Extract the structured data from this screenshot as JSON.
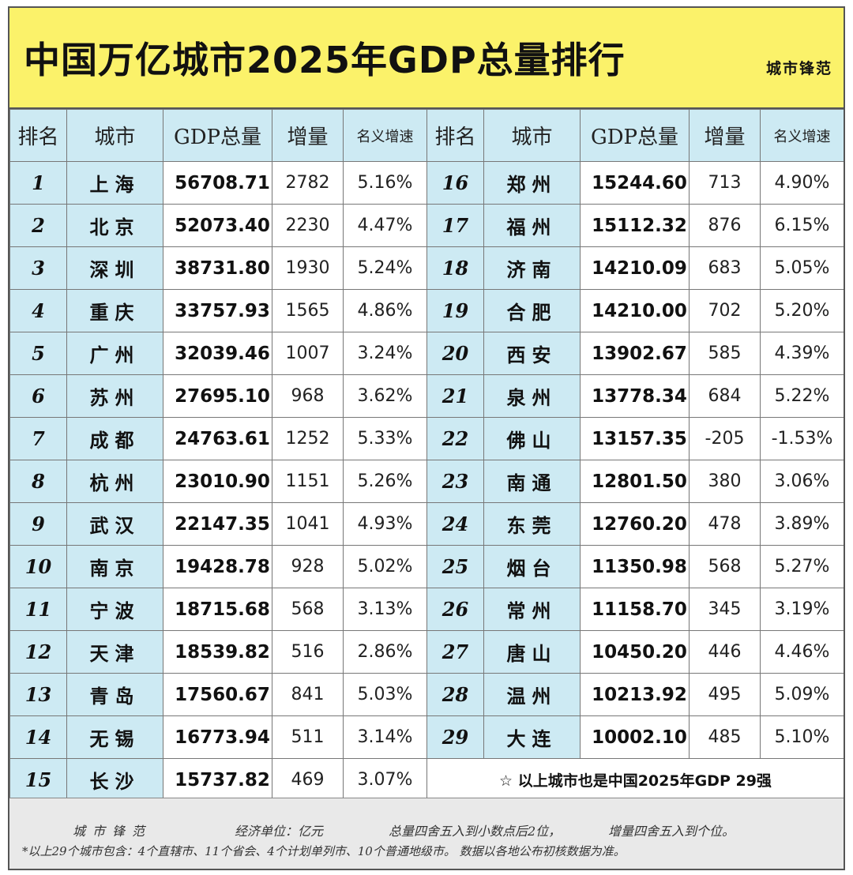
{
  "header": {
    "title": "中国万亿城市2025年GDP总量排行",
    "brand": "城市锋范"
  },
  "table": {
    "headers": [
      "排名",
      "城市",
      "GDP总量",
      "增量",
      "名义增速"
    ],
    "rows": [
      {
        "rank": "1",
        "city": "上海",
        "gdp": "56708.71",
        "increase": "2782",
        "rate": "5.16%"
      },
      {
        "rank": "2",
        "city": "北京",
        "gdp": "52073.40",
        "increase": "2230",
        "rate": "4.47%"
      },
      {
        "rank": "3",
        "city": "深圳",
        "gdp": "38731.80",
        "increase": "1930",
        "rate": "5.24%"
      },
      {
        "rank": "4",
        "city": "重庆",
        "gdp": "33757.93",
        "increase": "1565",
        "rate": "4.86%"
      },
      {
        "rank": "5",
        "city": "广州",
        "gdp": "32039.46",
        "increase": "1007",
        "rate": "3.24%"
      },
      {
        "rank": "6",
        "city": "苏州",
        "gdp": "27695.10",
        "increase": "968",
        "rate": "3.62%"
      },
      {
        "rank": "7",
        "city": "成都",
        "gdp": "24763.61",
        "increase": "1252",
        "rate": "5.33%"
      },
      {
        "rank": "8",
        "city": "杭州",
        "gdp": "23010.90",
        "increase": "1151",
        "rate": "5.26%"
      },
      {
        "rank": "9",
        "city": "武汉",
        "gdp": "22147.35",
        "increase": "1041",
        "rate": "4.93%"
      },
      {
        "rank": "10",
        "city": "南京",
        "gdp": "19428.78",
        "increase": "928",
        "rate": "5.02%"
      },
      {
        "rank": "11",
        "city": "宁波",
        "gdp": "18715.68",
        "increase": "568",
        "rate": "3.13%"
      },
      {
        "rank": "12",
        "city": "天津",
        "gdp": "18539.82",
        "increase": "516",
        "rate": "2.86%"
      },
      {
        "rank": "13",
        "city": "青岛",
        "gdp": "17560.67",
        "increase": "841",
        "rate": "5.03%"
      },
      {
        "rank": "14",
        "city": "无锡",
        "gdp": "16773.94",
        "increase": "511",
        "rate": "3.14%"
      },
      {
        "rank": "15",
        "city": "长沙",
        "gdp": "15737.82",
        "increase": "469",
        "rate": "3.07%"
      },
      {
        "rank": "16",
        "city": "郑州",
        "gdp": "15244.60",
        "increase": "713",
        "rate": "4.90%"
      },
      {
        "rank": "17",
        "city": "福州",
        "gdp": "15112.32",
        "increase": "876",
        "rate": "6.15%"
      },
      {
        "rank": "18",
        "city": "济南",
        "gdp": "14210.09",
        "increase": "683",
        "rate": "5.05%"
      },
      {
        "rank": "19",
        "city": "合肥",
        "gdp": "14210.00",
        "increase": "702",
        "rate": "5.20%"
      },
      {
        "rank": "20",
        "city": "西安",
        "gdp": "13902.67",
        "increase": "585",
        "rate": "4.39%"
      },
      {
        "rank": "21",
        "city": "泉州",
        "gdp": "13778.34",
        "increase": "684",
        "rate": "5.22%"
      },
      {
        "rank": "22",
        "city": "佛山",
        "gdp": "13157.35",
        "increase": "-205",
        "rate": "-1.53%"
      },
      {
        "rank": "23",
        "city": "南通",
        "gdp": "12801.50",
        "increase": "380",
        "rate": "3.06%"
      },
      {
        "rank": "24",
        "city": "东莞",
        "gdp": "12760.20",
        "increase": "478",
        "rate": "3.89%"
      },
      {
        "rank": "25",
        "city": "烟台",
        "gdp": "11350.98",
        "increase": "568",
        "rate": "5.27%"
      },
      {
        "rank": "26",
        "city": "常州",
        "gdp": "11158.70",
        "increase": "345",
        "rate": "3.19%"
      },
      {
        "rank": "27",
        "city": "唐山",
        "gdp": "10450.20",
        "increase": "446",
        "rate": "4.46%"
      },
      {
        "rank": "28",
        "city": "温州",
        "gdp": "10213.92",
        "increase": "495",
        "rate": "5.09%"
      },
      {
        "rank": "29",
        "city": "大连",
        "gdp": "10002.10",
        "increase": "485",
        "rate": "5.10%"
      }
    ],
    "note": "☆ 以上城市也是中国2025年GDP 29强"
  },
  "footer": {
    "brand": "城市锋范",
    "unit": "经济单位：亿元",
    "rounding_total": "总量四舍五入到小数点后2位，",
    "rounding_increase": "增量四舍五入到个位。",
    "composition": "*以上29个城市包含：4个直辖市、11个省会、4个计划单列市、10个普通地级市。 数据以各地公布初核数据为准。"
  }
}
